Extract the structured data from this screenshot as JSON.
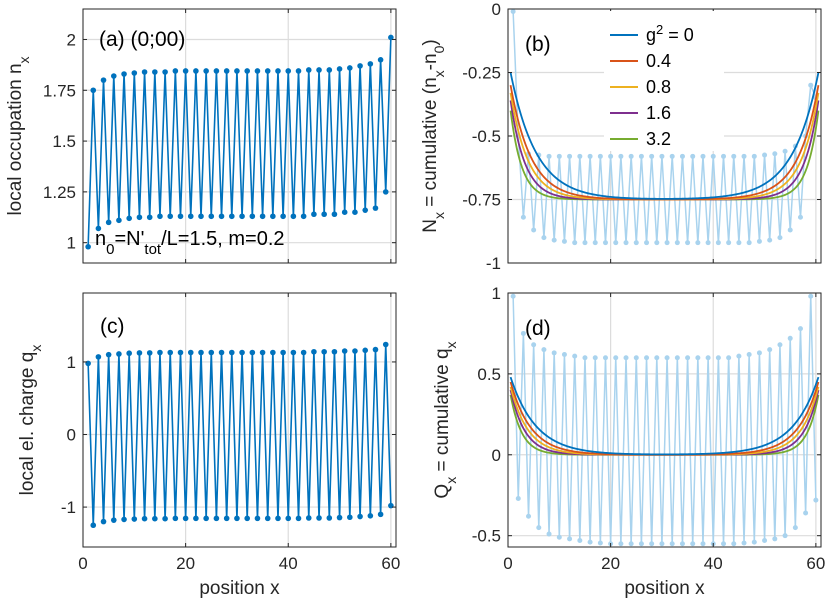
{
  "chart_data": [
    {
      "id": "a",
      "type": "line",
      "panel_label": "(a) (0;00)",
      "annotation": {
        "main": "n",
        "sub0": "0",
        "eq": "=N'",
        "sub1": "tot",
        "rest": "/L=1.5,  m=0.2"
      },
      "ylabel": {
        "main": "local occupation n",
        "sub": "x"
      },
      "xlabel": "",
      "xlim": [
        0,
        61
      ],
      "ylim": [
        0.9,
        2.15
      ],
      "xticks": [
        0,
        20,
        40,
        60
      ],
      "yticks": [
        1,
        1.25,
        1.5,
        1.75,
        2
      ],
      "ytick_labels": [
        "1",
        "1.25",
        "1.5",
        "1.75",
        "2"
      ],
      "grid": true,
      "series": [
        {
          "name": "n_x",
          "color": "#0072BD",
          "x": [
            1,
            2,
            3,
            4,
            5,
            6,
            7,
            8,
            9,
            10,
            11,
            12,
            13,
            14,
            15,
            16,
            17,
            18,
            19,
            20,
            21,
            22,
            23,
            24,
            25,
            26,
            27,
            28,
            29,
            30,
            31,
            32,
            33,
            34,
            35,
            36,
            37,
            38,
            39,
            40,
            41,
            42,
            43,
            44,
            45,
            46,
            47,
            48,
            49,
            50,
            51,
            52,
            53,
            54,
            55,
            56,
            57,
            58,
            59,
            60
          ],
          "y": [
            0.98,
            1.75,
            1.07,
            1.8,
            1.1,
            1.82,
            1.11,
            1.83,
            1.12,
            1.835,
            1.125,
            1.84,
            1.125,
            1.84,
            1.13,
            1.84,
            1.13,
            1.845,
            1.13,
            1.845,
            1.13,
            1.845,
            1.13,
            1.845,
            1.13,
            1.845,
            1.13,
            1.845,
            1.13,
            1.845,
            1.13,
            1.845,
            1.13,
            1.845,
            1.13,
            1.845,
            1.13,
            1.845,
            1.13,
            1.845,
            1.13,
            1.845,
            1.13,
            1.85,
            1.14,
            1.85,
            1.14,
            1.85,
            1.14,
            1.855,
            1.15,
            1.86,
            1.15,
            1.87,
            1.16,
            1.88,
            1.17,
            1.9,
            1.25,
            2.01
          ]
        }
      ]
    },
    {
      "id": "b",
      "type": "line",
      "panel_label": "(b)",
      "ylabel": {
        "main": "N",
        "sub": "x",
        "rest": " = cumulative (n",
        "sub2": "x",
        "rest2": "-n",
        "sub3": "0",
        "rest3": ")"
      },
      "xlabel": "",
      "xlim": [
        0,
        61
      ],
      "ylim": [
        -1,
        0
      ],
      "xticks": [
        0,
        20,
        40,
        60
      ],
      "yticks": [
        0,
        -0.25,
        -0.5,
        -0.75,
        -1
      ],
      "ytick_labels": [
        "0",
        "-0.25",
        "-0.5",
        "-0.75",
        "-1"
      ],
      "grid": true,
      "legend": {
        "placement": "top-right",
        "title_prefix": "g",
        "title_sup": "2",
        "title_suffix": " = 0",
        "labels": [
          "g² = 0",
          "0.4",
          "0.8",
          "1.6",
          "3.2"
        ]
      },
      "background_series": {
        "name": "raw cumulative (light)",
        "color": "#A9D3EE",
        "y_even": [
          -0.5,
          -0.57,
          -0.575,
          -0.58,
          -0.58,
          -0.58,
          -0.58,
          -0.58,
          -0.58,
          -0.58,
          -0.58,
          -0.58,
          -0.58,
          -0.58,
          -0.58,
          -0.58,
          -0.58,
          -0.58,
          -0.58,
          -0.58,
          -0.58,
          -0.58,
          -0.58,
          -0.58,
          -0.575,
          -0.57,
          -0.56,
          -0.54,
          -0.5,
          -0.35
        ],
        "y_odd": [
          -0.01,
          -0.82,
          -0.87,
          -0.9,
          -0.91,
          -0.915,
          -0.92,
          -0.92,
          -0.92,
          -0.92,
          -0.92,
          -0.92,
          -0.92,
          -0.92,
          -0.92,
          -0.92,
          -0.92,
          -0.92,
          -0.92,
          -0.92,
          -0.92,
          -0.92,
          -0.92,
          -0.92,
          -0.915,
          -0.91,
          -0.9,
          -0.87,
          -0.82,
          -0.3
        ]
      },
      "series": [
        {
          "name": "g² = 0",
          "color": "#0072BD",
          "edge_value": -0.25,
          "plateau": -0.75,
          "decay": 5.0
        },
        {
          "name": "0.4",
          "color": "#D95319",
          "edge_value": -0.3,
          "plateau": -0.75,
          "decay": 4.0
        },
        {
          "name": "0.8",
          "color": "#EDB120",
          "edge_value": -0.33,
          "plateau": -0.75,
          "decay": 3.4
        },
        {
          "name": "1.6",
          "color": "#7E2F8E",
          "edge_value": -0.36,
          "plateau": -0.75,
          "decay": 2.8
        },
        {
          "name": "3.2",
          "color": "#77AC30",
          "edge_value": -0.4,
          "plateau": -0.75,
          "decay": 2.2
        }
      ]
    },
    {
      "id": "c",
      "type": "line",
      "panel_label": "(c)",
      "ylabel": {
        "main": "local el. charge q",
        "sub": "x"
      },
      "xlabel": "position x",
      "xlim": [
        0,
        61
      ],
      "ylim": [
        -1.55,
        1.95
      ],
      "xticks": [
        0,
        20,
        40,
        60
      ],
      "xtick_labels": [
        "0",
        "20",
        "40",
        "60"
      ],
      "yticks": [
        1,
        0,
        -1
      ],
      "ytick_labels": [
        "1",
        "0",
        "-1"
      ],
      "grid": true,
      "series": [
        {
          "name": "q_x",
          "color": "#0072BD",
          "x": [
            1,
            2,
            3,
            4,
            5,
            6,
            7,
            8,
            9,
            10,
            11,
            12,
            13,
            14,
            15,
            16,
            17,
            18,
            19,
            20,
            21,
            22,
            23,
            24,
            25,
            26,
            27,
            28,
            29,
            30,
            31,
            32,
            33,
            34,
            35,
            36,
            37,
            38,
            39,
            40,
            41,
            42,
            43,
            44,
            45,
            46,
            47,
            48,
            49,
            50,
            51,
            52,
            53,
            54,
            55,
            56,
            57,
            58,
            59,
            60
          ],
          "y": [
            0.98,
            -1.25,
            1.07,
            -1.2,
            1.1,
            -1.18,
            1.11,
            -1.17,
            1.12,
            -1.165,
            1.125,
            -1.16,
            1.125,
            -1.16,
            1.13,
            -1.16,
            1.13,
            -1.155,
            1.13,
            -1.155,
            1.13,
            -1.155,
            1.13,
            -1.155,
            1.13,
            -1.155,
            1.13,
            -1.155,
            1.13,
            -1.155,
            1.13,
            -1.155,
            1.13,
            -1.155,
            1.13,
            -1.155,
            1.13,
            -1.155,
            1.13,
            -1.155,
            1.13,
            -1.155,
            1.13,
            -1.15,
            1.14,
            -1.15,
            1.14,
            -1.15,
            1.14,
            -1.145,
            1.15,
            -1.14,
            1.15,
            -1.13,
            1.16,
            -1.12,
            1.17,
            -1.1,
            1.24,
            -0.98
          ]
        }
      ]
    },
    {
      "id": "d",
      "type": "line",
      "panel_label": "(d)",
      "ylabel": {
        "main": "Q",
        "sub": "x",
        "rest": " = cumulative q",
        "sub2": "x"
      },
      "xlabel": "position x",
      "xlim": [
        0,
        61
      ],
      "ylim": [
        -0.57,
        1
      ],
      "xticks": [
        0,
        20,
        40,
        60
      ],
      "xtick_labels": [
        "0",
        "20",
        "40",
        "60"
      ],
      "yticks": [
        1,
        0.5,
        0,
        -0.5
      ],
      "ytick_labels": [
        "1",
        "0.5",
        "0",
        "-0.5"
      ],
      "grid": true,
      "background_series": {
        "name": "raw cumulative (light)",
        "color": "#A9D3EE",
        "y_even": [
          -0.27,
          -0.38,
          -0.45,
          -0.49,
          -0.51,
          -0.52,
          -0.53,
          -0.54,
          -0.545,
          -0.55,
          -0.55,
          -0.55,
          -0.55,
          -0.55,
          -0.55,
          -0.55,
          -0.55,
          -0.55,
          -0.55,
          -0.55,
          -0.55,
          -0.55,
          -0.545,
          -0.54,
          -0.53,
          -0.52,
          -0.5,
          -0.45,
          -0.36,
          -0.28
        ],
        "y_odd": [
          0.98,
          0.75,
          0.68,
          0.65,
          0.63,
          0.62,
          0.61,
          0.6,
          0.6,
          0.6,
          0.6,
          0.6,
          0.6,
          0.6,
          0.6,
          0.6,
          0.6,
          0.6,
          0.6,
          0.6,
          0.6,
          0.6,
          0.61,
          0.62,
          0.63,
          0.65,
          0.68,
          0.72,
          0.78,
          0.98
        ]
      },
      "series": [
        {
          "name": "g² = 0",
          "color": "#0072BD",
          "edge_value": 0.48,
          "plateau": 0,
          "decay": 5.0
        },
        {
          "name": "0.4",
          "color": "#D95319",
          "edge_value": 0.45,
          "plateau": 0,
          "decay": 4.0
        },
        {
          "name": "0.8",
          "color": "#EDB120",
          "edge_value": 0.42,
          "plateau": 0,
          "decay": 3.4
        },
        {
          "name": "1.6",
          "color": "#7E2F8E",
          "edge_value": 0.4,
          "plateau": 0,
          "decay": 2.8
        },
        {
          "name": "3.2",
          "color": "#77AC30",
          "edge_value": 0.37,
          "plateau": 0,
          "decay": 2.2
        }
      ]
    }
  ]
}
